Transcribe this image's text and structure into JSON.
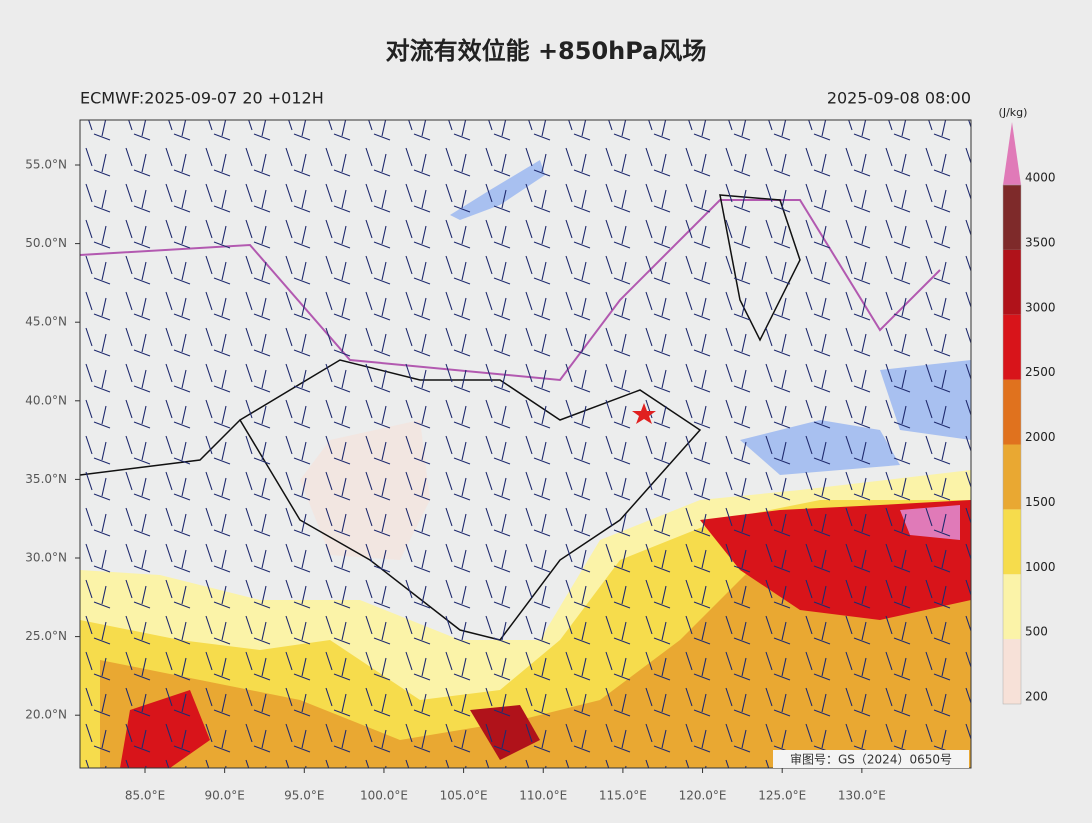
{
  "title": "对流有效位能 +850hPa风场",
  "run_info": "ECMWF:2025-09-07 20 +012H",
  "valid_time": "2025-09-08 08:00",
  "lat_ticks": [
    {
      "value": 55,
      "label": "55.0°N"
    },
    {
      "value": 50,
      "label": "50.0°N"
    },
    {
      "value": 45,
      "label": "45.0°N"
    },
    {
      "value": 40,
      "label": "40.0°N"
    },
    {
      "value": 35,
      "label": "35.0°N"
    },
    {
      "value": 30,
      "label": "30.0°N"
    },
    {
      "value": 25,
      "label": "25.0°N"
    },
    {
      "value": 20,
      "label": "20.0°N"
    }
  ],
  "lon_ticks": [
    {
      "value": 85,
      "label": "85.0°E"
    },
    {
      "value": 90,
      "label": "90.0°E"
    },
    {
      "value": 95,
      "label": "95.0°E"
    },
    {
      "value": 100,
      "label": "100.0°E"
    },
    {
      "value": 105,
      "label": "105.0°E"
    },
    {
      "value": 110,
      "label": "110.0°E"
    },
    {
      "value": 115,
      "label": "115.0°E"
    },
    {
      "value": 120,
      "label": "120.0°E"
    },
    {
      "value": 125,
      "label": "125.0°E"
    },
    {
      "value": 130,
      "label": "130.0°E"
    }
  ],
  "colorbar": {
    "unit": "(J/kg)",
    "levels": [
      200,
      500,
      1000,
      1500,
      2000,
      2500,
      3000,
      3500,
      4000
    ],
    "colors": [
      "#f7e1d8",
      "#fbf3a8",
      "#f6dc4c",
      "#e9a832",
      "#e0721e",
      "#d8141a",
      "#b0121a",
      "#7e2a2a"
    ],
    "extend_color": "#e07ab8"
  },
  "map_note": "审图号：GS（2024）0650号"
}
